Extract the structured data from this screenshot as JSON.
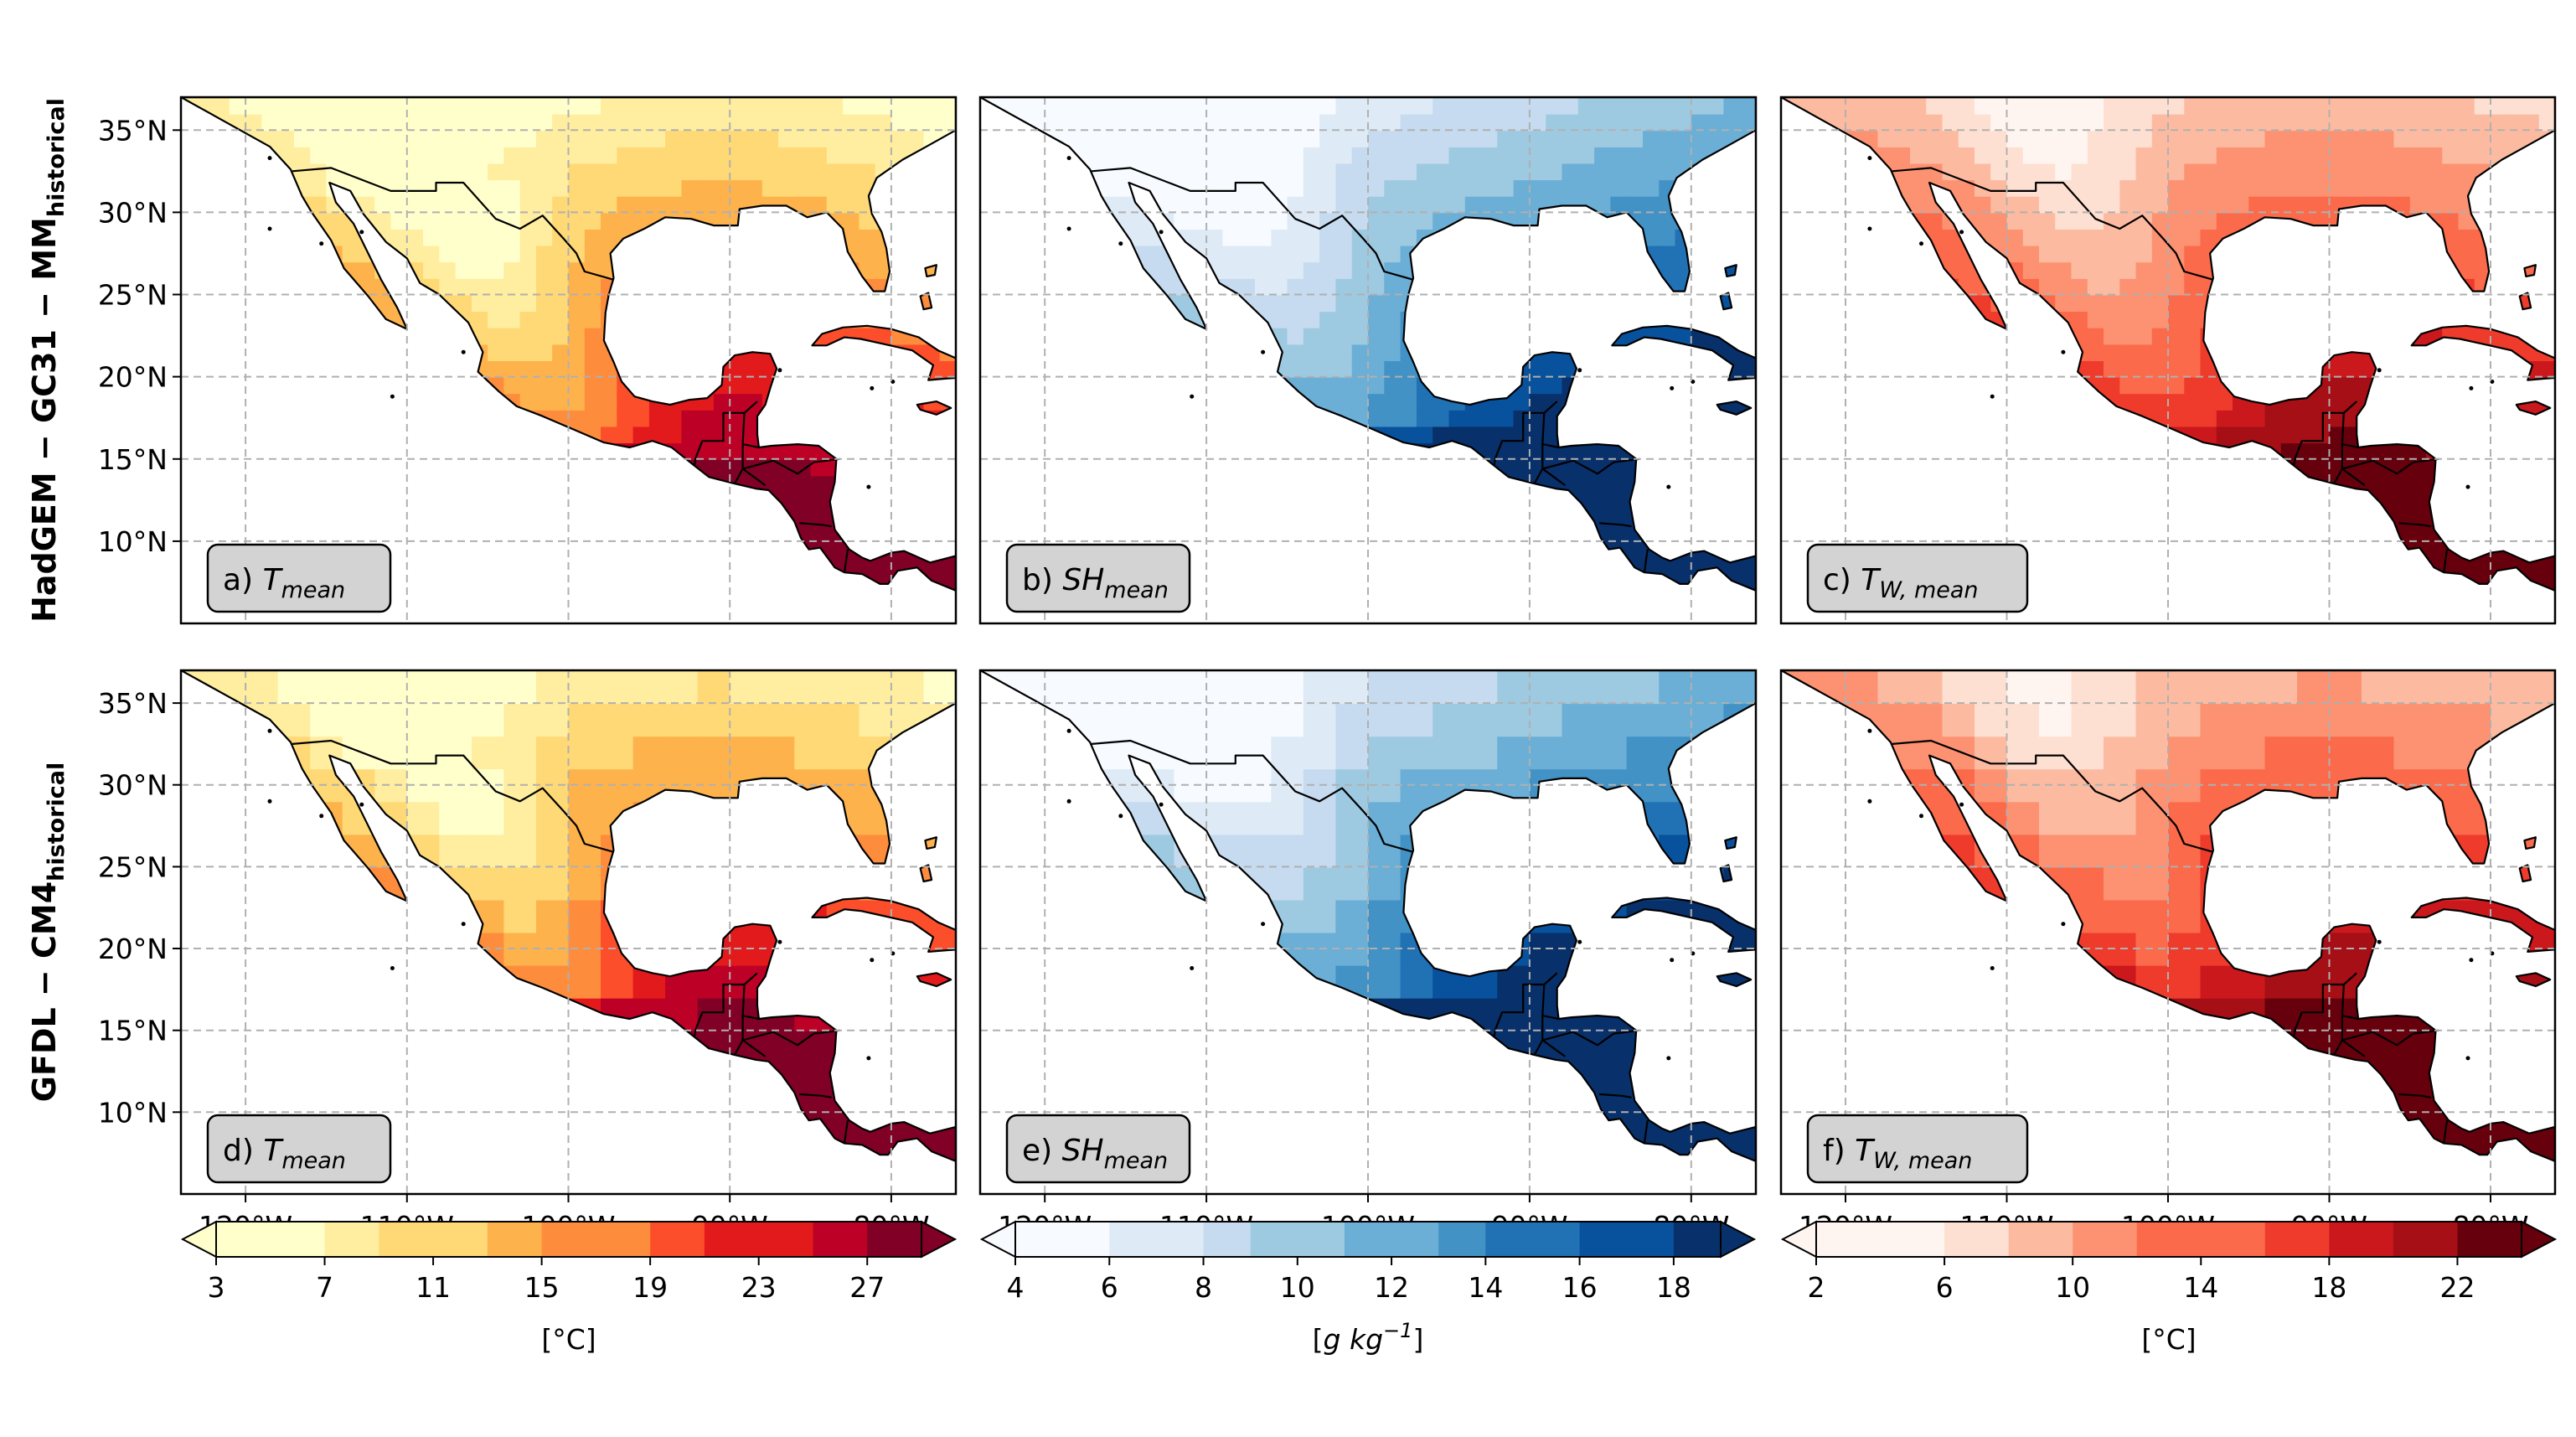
{
  "rows": [
    {
      "label_main": "HadGEM − GC31 − MM",
      "label_sub": "historical"
    },
    {
      "label_main": "GFDL − CM4",
      "label_sub": "historical"
    }
  ],
  "panels": [
    {
      "id": "a",
      "prefix": "a) ",
      "var": "T",
      "sub": "mean",
      "scheme": "temp",
      "grid": "fine"
    },
    {
      "id": "b",
      "prefix": "b) ",
      "var": "SH",
      "sub": "mean",
      "scheme": "hum",
      "grid": "fine"
    },
    {
      "id": "c",
      "prefix": "c) ",
      "var": "T",
      "sub": "W, mean",
      "scheme": "wet",
      "grid": "fine"
    },
    {
      "id": "d",
      "prefix": "d) ",
      "var": "T",
      "sub": "mean",
      "scheme": "temp",
      "grid": "coarse"
    },
    {
      "id": "e",
      "prefix": "e) ",
      "var": "SH",
      "sub": "mean",
      "scheme": "hum",
      "grid": "coarse"
    },
    {
      "id": "f",
      "prefix": "f) ",
      "var": "T",
      "sub": "W, mean",
      "scheme": "wet",
      "grid": "coarse"
    }
  ],
  "axes": {
    "lon_ticks": [
      -120,
      -110,
      -100,
      -90,
      -80
    ],
    "lon_labels": [
      "120°W",
      "110°W",
      "100°W",
      "90°W",
      "80°W"
    ],
    "lat_ticks": [
      35,
      30,
      25,
      20,
      15,
      10
    ],
    "lat_labels": [
      "35°N",
      "30°N",
      "25°N",
      "20°N",
      "15°N",
      "10°N"
    ],
    "lon_range": [
      -124,
      -76
    ],
    "lat_range": [
      5,
      37
    ]
  },
  "colorbars": [
    {
      "ticks": [
        "3",
        "7",
        "11",
        "15",
        "19",
        "23",
        "27"
      ],
      "tick_values": [
        3,
        7,
        11,
        15,
        19,
        23,
        27
      ],
      "min": 3,
      "max": 29,
      "step": 2,
      "unit": "[°C]",
      "colors": [
        "#ffffcc",
        "#ffeda0",
        "#fed976",
        "#feb24c",
        "#fd8d3c",
        "#fc4e2a",
        "#e31a1c",
        "#bd0026",
        "#800026"
      ]
    },
    {
      "ticks": [
        "4",
        "6",
        "8",
        "10",
        "12",
        "14",
        "16",
        "18"
      ],
      "tick_values": [
        4,
        6,
        8,
        10,
        12,
        14,
        16,
        18
      ],
      "min": 4,
      "max": 19,
      "step": 1,
      "unit_pre": "[",
      "unit_g": "g kg",
      "unit_sup": "−1",
      "unit_post": "]",
      "colors": [
        "#f7fbff",
        "#deebf7",
        "#c6dbef",
        "#9ecae1",
        "#6baed6",
        "#4292c6",
        "#2171b5",
        "#08519c",
        "#08306b"
      ]
    },
    {
      "ticks": [
        "2",
        "6",
        "10",
        "14",
        "18",
        "22"
      ],
      "tick_values": [
        2,
        6,
        10,
        14,
        18,
        22
      ],
      "min": 2,
      "max": 24,
      "step": 2,
      "unit": "[°C]",
      "colors": [
        "#fff5f0",
        "#fee0d2",
        "#fcbba1",
        "#fc9272",
        "#fb6a4a",
        "#ef3b2c",
        "#cb181d",
        "#a50f15",
        "#67000d"
      ]
    }
  ],
  "colors": {
    "land_outline": "#000000",
    "grid": "#b0b0b0",
    "label_box": "#d3d3d3"
  }
}
